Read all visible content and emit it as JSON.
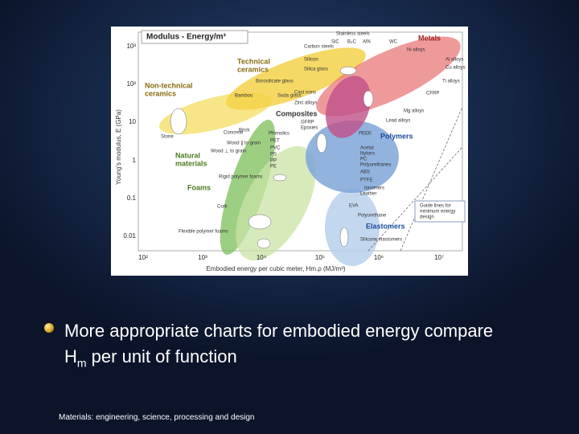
{
  "figure": {
    "title": "Modulus - Energy/m³",
    "y_axis_label": "Young's modulus, E (GPa)",
    "x_axis_label": "Embodied energy per cubic meter, Hm.ρ (MJ/m³)",
    "y_ticks": [
      "10³",
      "10²",
      "10",
      "1",
      "0.1",
      "0.01"
    ],
    "x_ticks": [
      "10²",
      "10³",
      "10⁴",
      "10⁵",
      "10⁶",
      "10⁷"
    ],
    "families": [
      {
        "lines": [
          "Metals"
        ]
      },
      {
        "lines": [
          "Technical",
          "ceramics"
        ]
      },
      {
        "lines": [
          "Non-technical",
          "ceramics"
        ]
      },
      {
        "lines": [
          "Composites"
        ]
      },
      {
        "lines": [
          "Polymers"
        ]
      },
      {
        "lines": [
          "Natural",
          "materials"
        ]
      },
      {
        "lines": [
          "Foams"
        ]
      },
      {
        "lines": [
          "Elastomers"
        ]
      }
    ],
    "materials": [
      "Carbon steels",
      "SiC",
      "B₄C",
      "AlN",
      "WC",
      "Stainless steels",
      "Ni alloys",
      "Al alloys",
      "Cu alloys",
      "Ti alloys",
      "Silicon",
      "Silica glass",
      "Borosilicate glass",
      "Soda glass",
      "Bamboo",
      "Cast irons",
      "Zinc alloys",
      "CFRP",
      "Mg alloys",
      "Lead alloys",
      "GFRP",
      "Epoxies",
      "Brick",
      "Concrete",
      "Stone",
      "Wood ∥ to grain",
      "Wood ⊥ to grain",
      "Phenolics",
      "PEEK",
      "PET",
      "PVC",
      "PS",
      "PP",
      "PE",
      "Acetal",
      "Nylons",
      "PC",
      "Polyurethanes",
      "ABS",
      "PTFE",
      "Ionomers",
      "Leather",
      "Rigid polymer foams",
      "Cork",
      "Flexible polymer foams",
      "EVA",
      "Polyurethane",
      "Silicone elastomers"
    ],
    "guide": [
      "Guide lines for",
      "minimum energy",
      "design"
    ]
  },
  "bullet": {
    "parts": [
      "More appropriate charts for embodied energy compare H",
      "m",
      " per unit of function"
    ]
  },
  "footer": "Materials: engineering, science, processing and design"
}
